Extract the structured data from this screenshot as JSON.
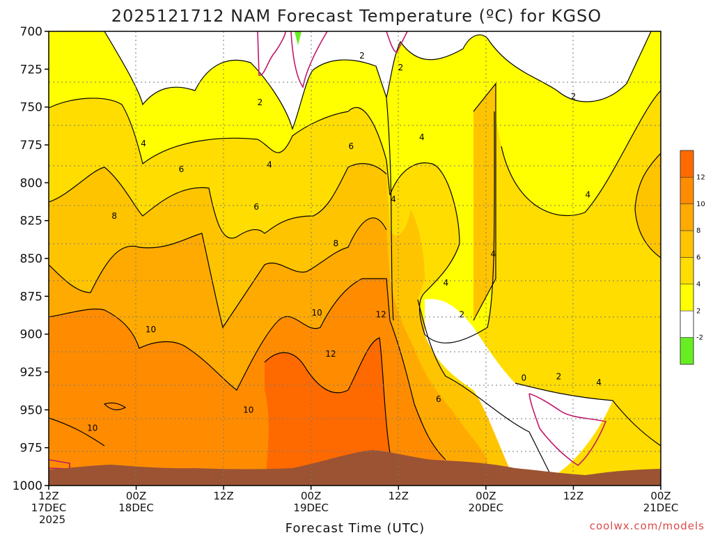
{
  "chart_data": {
    "type": "heatmap",
    "title": "2025121712 NAM Forecast Temperature (ºC) for KGSO",
    "xlabel": "Forecast Time (UTC)",
    "ylabel": "",
    "credit": "coolwx.com/models",
    "y_axis": {
      "units": "hPa",
      "inverted": true,
      "range": [
        1000,
        700
      ],
      "ticks": [
        700,
        725,
        750,
        775,
        800,
        825,
        850,
        875,
        900,
        925,
        950,
        975,
        1000
      ]
    },
    "x_axis": {
      "range_hours": [
        0,
        84
      ],
      "ticks": [
        {
          "hour": 0,
          "label": [
            "12Z",
            "17DEC",
            "2025"
          ]
        },
        {
          "hour": 12,
          "label": [
            "00Z",
            "18DEC"
          ]
        },
        {
          "hour": 24,
          "label": [
            "12Z"
          ]
        },
        {
          "hour": 36,
          "label": [
            "00Z",
            "19DEC"
          ]
        },
        {
          "hour": 48,
          "label": [
            "12Z"
          ]
        },
        {
          "hour": 60,
          "label": [
            "00Z",
            "20DEC"
          ]
        },
        {
          "hour": 72,
          "label": [
            "12Z"
          ]
        },
        {
          "hour": 84,
          "label": [
            "00Z",
            "21DEC"
          ]
        }
      ]
    },
    "grid": true,
    "colorbar": {
      "placement": "right",
      "bins": [
        {
          "from": -4,
          "to": -2,
          "color": "#66ee22"
        },
        {
          "from": -2,
          "to": 2,
          "color": "#ffffff"
        },
        {
          "from": 2,
          "to": 4,
          "color": "#ffff00"
        },
        {
          "from": 4,
          "to": 6,
          "color": "#ffdd00"
        },
        {
          "from": 6,
          "to": 8,
          "color": "#ffc400"
        },
        {
          "from": 8,
          "to": 10,
          "color": "#ffaa00"
        },
        {
          "from": 10,
          "to": 12,
          "color": "#ff8c00"
        },
        {
          "from": 12,
          "to": 14,
          "color": "#ff6a00"
        }
      ],
      "tick_labels": [
        "-2",
        "2",
        "4",
        "6",
        "8",
        "10",
        "12"
      ]
    },
    "contour_labels": [
      {
        "text": "2",
        "hour": 43.0,
        "p": 716
      },
      {
        "text": "2",
        "hour": 48.3,
        "p": 724
      },
      {
        "text": "2",
        "hour": 72.0,
        "p": 743
      },
      {
        "text": "2",
        "hour": 29.0,
        "p": 747
      },
      {
        "text": "4",
        "hour": 51.2,
        "p": 770
      },
      {
        "text": "4",
        "hour": 13.0,
        "p": 774
      },
      {
        "text": "6",
        "hour": 41.5,
        "p": 776
      },
      {
        "text": "4",
        "hour": 30.3,
        "p": 788
      },
      {
        "text": "6",
        "hour": 18.2,
        "p": 791
      },
      {
        "text": "4",
        "hour": 74.0,
        "p": 808
      },
      {
        "text": "4",
        "hour": 47.3,
        "p": 811
      },
      {
        "text": "6",
        "hour": 28.5,
        "p": 816
      },
      {
        "text": "8",
        "hour": 9.0,
        "p": 822
      },
      {
        "text": "8",
        "hour": 39.4,
        "p": 840
      },
      {
        "text": "4",
        "hour": 61.0,
        "p": 847
      },
      {
        "text": "4",
        "hour": 54.5,
        "p": 866
      },
      {
        "text": "10",
        "hour": 36.8,
        "p": 886
      },
      {
        "text": "2",
        "hour": 56.7,
        "p": 887
      },
      {
        "text": "12",
        "hour": 45.6,
        "p": 887
      },
      {
        "text": "10",
        "hour": 14.0,
        "p": 897
      },
      {
        "text": "12",
        "hour": 38.7,
        "p": 913
      },
      {
        "text": "0",
        "hour": 65.2,
        "p": 929
      },
      {
        "text": "2",
        "hour": 70.0,
        "p": 928
      },
      {
        "text": "4",
        "hour": 75.5,
        "p": 932
      },
      {
        "text": "6",
        "hour": 53.5,
        "p": 943
      },
      {
        "text": "10",
        "hour": 27.4,
        "p": 950
      },
      {
        "text": "10",
        "hour": 6.0,
        "p": 962
      }
    ],
    "colors": {
      "terrain": "#9b5333",
      "contour": "#000000",
      "freezing_line": "#c0186b"
    }
  }
}
